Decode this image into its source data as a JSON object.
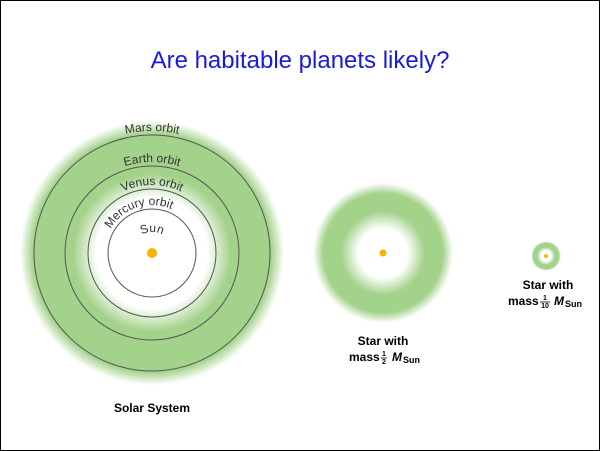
{
  "title": "Are habitable planets likely?",
  "solar_system": {
    "label": "Solar System",
    "orbits": [
      "Mars orbit",
      "Earth orbit",
      "Venus orbit",
      "Mercury orbit"
    ],
    "star": "Sun"
  },
  "half_mass_star": {
    "line1": "Star with",
    "mass": "mass",
    "num": "1",
    "den": "2",
    "symbol": "M",
    "sub": "Sun"
  },
  "tenth_mass_star": {
    "line1": "Star with",
    "mass": "mass",
    "num": "1",
    "den": "10",
    "symbol": "M",
    "sub": "Sun"
  }
}
